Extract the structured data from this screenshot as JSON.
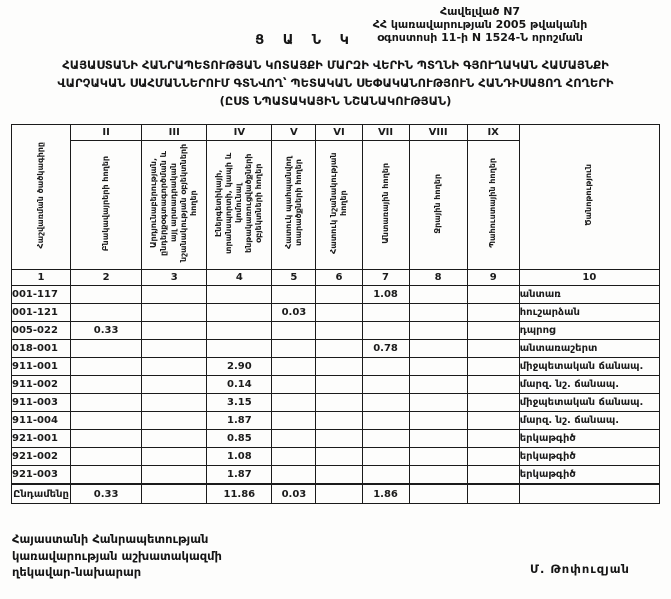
{
  "annex": {
    "line1": "Հավելված N7",
    "line2": "ՀՀ կառավարության 2005 թվականի",
    "line3": "օգոստոսի 11-ի N 1524-Ն որոշման"
  },
  "doc": {
    "heading": "Ց Ա Ն Կ",
    "title_line1": "ՀԱՅԱՍՏԱՆԻ ՀԱՆՐԱՊԵՏՈՒԹՅԱՆ ԿՈՏԱՅՔԻ ՄԱՐԶԻ ՎԵՐԻՆ ՊՏՂՆԻ ԳՅՈՒՂԱԿԱՆ ՀԱՄԱՅՆՔԻ",
    "title_line2": "ՎԱՐՉԱԿԱՆ ՍԱՀՄԱՆՆԵՐՈՒՄ ԳՏՆՎՈՂ՝ ՊԵՏԱԿԱՆ ՍԵՓԱԿԱՆՈՒԹՅՈՒՆ ՀԱՆԴԻՍԱՑՈՂ ՀՈՂԵՐԻ",
    "title_line3": "(ԸՍՏ ՆՊԱՏԱԿԱՅԻՆ ՆՇԱՆԱԿՈՒԹՅԱՆ)"
  },
  "table": {
    "roman_numerals": [
      "II",
      "III",
      "IV",
      "V",
      "VI",
      "VII",
      "VIII",
      "IX"
    ],
    "headers": {
      "col1": "Հաշվառման ծածկագիրը",
      "col2": "Բնակավայրերի հողեր",
      "col3": "Արդյունաբերության, ընդերքօգտագործման և այլ արտադրական նշանակության օբյեկտների հողեր",
      "col4": "Էներգետիկայի, տրանսպորտի, կապի և կոմունալ ենթակառուցվածքների օբյեկտների հողեր",
      "col5": "Հատուկ պահպանվող տարածքների հողեր",
      "col6": "Հատուկ նշանակության հողեր",
      "col7": "Անտառային հողեր",
      "col8": "Ջրային հողեր",
      "col9": "Պահուստային հողեր",
      "col10": "Ծանոթություն"
    },
    "column_numbers": [
      "1",
      "2",
      "3",
      "4",
      "5",
      "6",
      "7",
      "8",
      "9",
      "10"
    ],
    "rows": [
      {
        "code": "001-117",
        "c2": "",
        "c3": "",
        "c4": "",
        "c5": "",
        "c6": "",
        "c7": "1.08",
        "c8": "",
        "c9": "",
        "note": "անտառ"
      },
      {
        "code": "001-121",
        "c2": "",
        "c3": "",
        "c4": "",
        "c5": "0.03",
        "c6": "",
        "c7": "",
        "c8": "",
        "c9": "",
        "note": "հուշարձան"
      },
      {
        "code": "005-022",
        "c2": "0.33",
        "c3": "",
        "c4": "",
        "c5": "",
        "c6": "",
        "c7": "",
        "c8": "",
        "c9": "",
        "note": "դպրոց"
      },
      {
        "code": "018-001",
        "c2": "",
        "c3": "",
        "c4": "",
        "c5": "",
        "c6": "",
        "c7": "0.78",
        "c8": "",
        "c9": "",
        "note": "անտառաշերտ"
      },
      {
        "code": "911-001",
        "c2": "",
        "c3": "",
        "c4": "2.90",
        "c5": "",
        "c6": "",
        "c7": "",
        "c8": "",
        "c9": "",
        "note": "միջպետական ճանապ."
      },
      {
        "code": "911-002",
        "c2": "",
        "c3": "",
        "c4": "0.14",
        "c5": "",
        "c6": "",
        "c7": "",
        "c8": "",
        "c9": "",
        "note": "մարզ. նշ. ճանապ."
      },
      {
        "code": "911-003",
        "c2": "",
        "c3": "",
        "c4": "3.15",
        "c5": "",
        "c6": "",
        "c7": "",
        "c8": "",
        "c9": "",
        "note": "միջպետական ճանապ."
      },
      {
        "code": "911-004",
        "c2": "",
        "c3": "",
        "c4": "1.87",
        "c5": "",
        "c6": "",
        "c7": "",
        "c8": "",
        "c9": "",
        "note": "մարզ. նշ. ճանապ."
      },
      {
        "code": "921-001",
        "c2": "",
        "c3": "",
        "c4": "0.85",
        "c5": "",
        "c6": "",
        "c7": "",
        "c8": "",
        "c9": "",
        "note": "երկաթգիծ"
      },
      {
        "code": "921-002",
        "c2": "",
        "c3": "",
        "c4": "1.08",
        "c5": "",
        "c6": "",
        "c7": "",
        "c8": "",
        "c9": "",
        "note": "երկաթգիծ"
      },
      {
        "code": "921-003",
        "c2": "",
        "c3": "",
        "c4": "1.87",
        "c5": "",
        "c6": "",
        "c7": "",
        "c8": "",
        "c9": "",
        "note": "երկաթգիծ"
      }
    ],
    "total": {
      "label": "Ընդամենը",
      "c2": "0.33",
      "c3": "",
      "c4": "11.86",
      "c5": "0.03",
      "c6": "",
      "c7": "1.86",
      "c8": "",
      "c9": "",
      "note": ""
    }
  },
  "footer": {
    "left_line1": "Հայաստանի Հանրապետության",
    "left_line2": "կառավարության աշխատակազմի",
    "left_line3": "ղեկավար-նախարար",
    "signature": "Մ. Թոփուզյան"
  }
}
